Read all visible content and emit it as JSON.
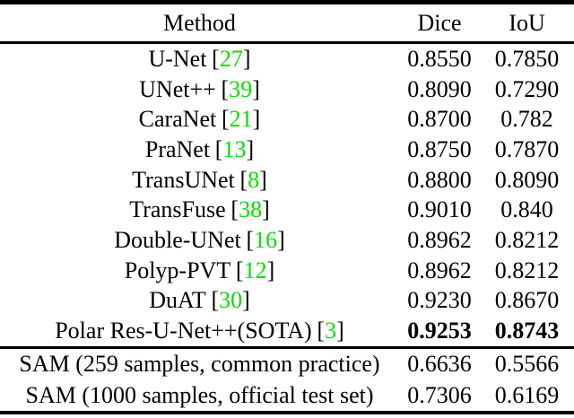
{
  "colors": {
    "background": "#ffffff",
    "text": "#000000",
    "citation_green": "#00e000",
    "rule": "#000000"
  },
  "table": {
    "headers": {
      "method": "Method",
      "dice": "Dice",
      "iou": "IoU"
    },
    "citation_brackets": [
      "[",
      "]"
    ],
    "rows": [
      {
        "method": "U-Net",
        "cite": "27",
        "dice": "0.8550",
        "iou": "0.7850",
        "bold": false
      },
      {
        "method": "UNet++",
        "cite": "39",
        "dice": "0.8090",
        "iou": "0.7290",
        "bold": false
      },
      {
        "method": "CaraNet",
        "cite": "21",
        "dice": "0.8700",
        "iou": "0.782",
        "bold": false
      },
      {
        "method": "PraNet",
        "cite": "13",
        "dice": "0.8750",
        "iou": "0.7870",
        "bold": false
      },
      {
        "method": "TransUNet",
        "cite": "8",
        "dice": "0.8800",
        "iou": "0.8090",
        "bold": false
      },
      {
        "method": "TransFuse",
        "cite": "38",
        "dice": "0.9010",
        "iou": "0.840",
        "bold": false
      },
      {
        "method": "Double-UNet",
        "cite": "16",
        "dice": "0.8962",
        "iou": "0.8212",
        "bold": false
      },
      {
        "method": "Polyp-PVT",
        "cite": "12",
        "dice": "0.8962",
        "iou": "0.8212",
        "bold": false
      },
      {
        "method": "DuAT",
        "cite": "30",
        "dice": "0.9230",
        "iou": "0.8670",
        "bold": false
      },
      {
        "method": "Polar Res-U-Net++(SOTA)",
        "cite": "3",
        "dice": "0.9253",
        "iou": "0.8743",
        "bold": true
      }
    ],
    "sam_rows": [
      {
        "method": "SAM (259 samples, common practice)",
        "cite": null,
        "dice": "0.6636",
        "iou": "0.5566",
        "bold": false
      },
      {
        "method": "SAM (1000 samples, official test set)",
        "cite": null,
        "dice": "0.7306",
        "iou": "0.6169",
        "bold": false
      }
    ]
  }
}
